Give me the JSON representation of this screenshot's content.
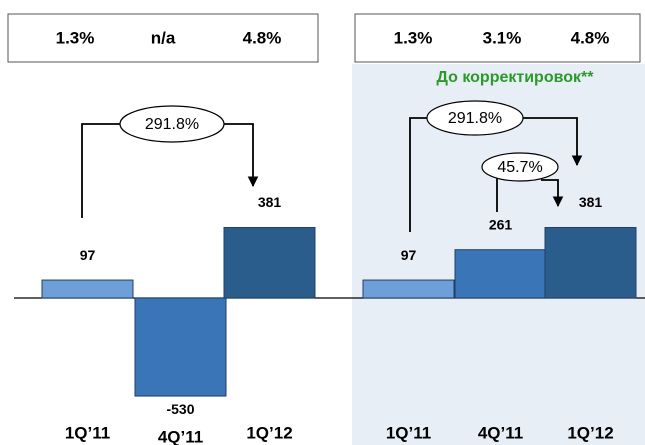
{
  "chart_data": [
    {
      "type": "bar",
      "header_values": [
        "1.3%",
        "n/a",
        "4.8%"
      ],
      "categories": [
        "1Q’11",
        "4Q’11",
        "1Q’12"
      ],
      "values": [
        97,
        -530,
        381
      ],
      "colors": [
        "#6f9fd8",
        "#3a75b8",
        "#2b5d8c"
      ],
      "growth_labels": [
        "291.8%"
      ]
    },
    {
      "type": "bar",
      "header_values": [
        "1.3%",
        "3.1%",
        "4.8%"
      ],
      "subtitle": "До корректировок**",
      "categories": [
        "1Q’11",
        "4Q’11",
        "1Q’12"
      ],
      "values": [
        97,
        261,
        381
      ],
      "colors": [
        "#6f9fd8",
        "#3a75b8",
        "#2b5d8c"
      ],
      "growth_labels": [
        "291.8%",
        "45.7%"
      ]
    }
  ]
}
